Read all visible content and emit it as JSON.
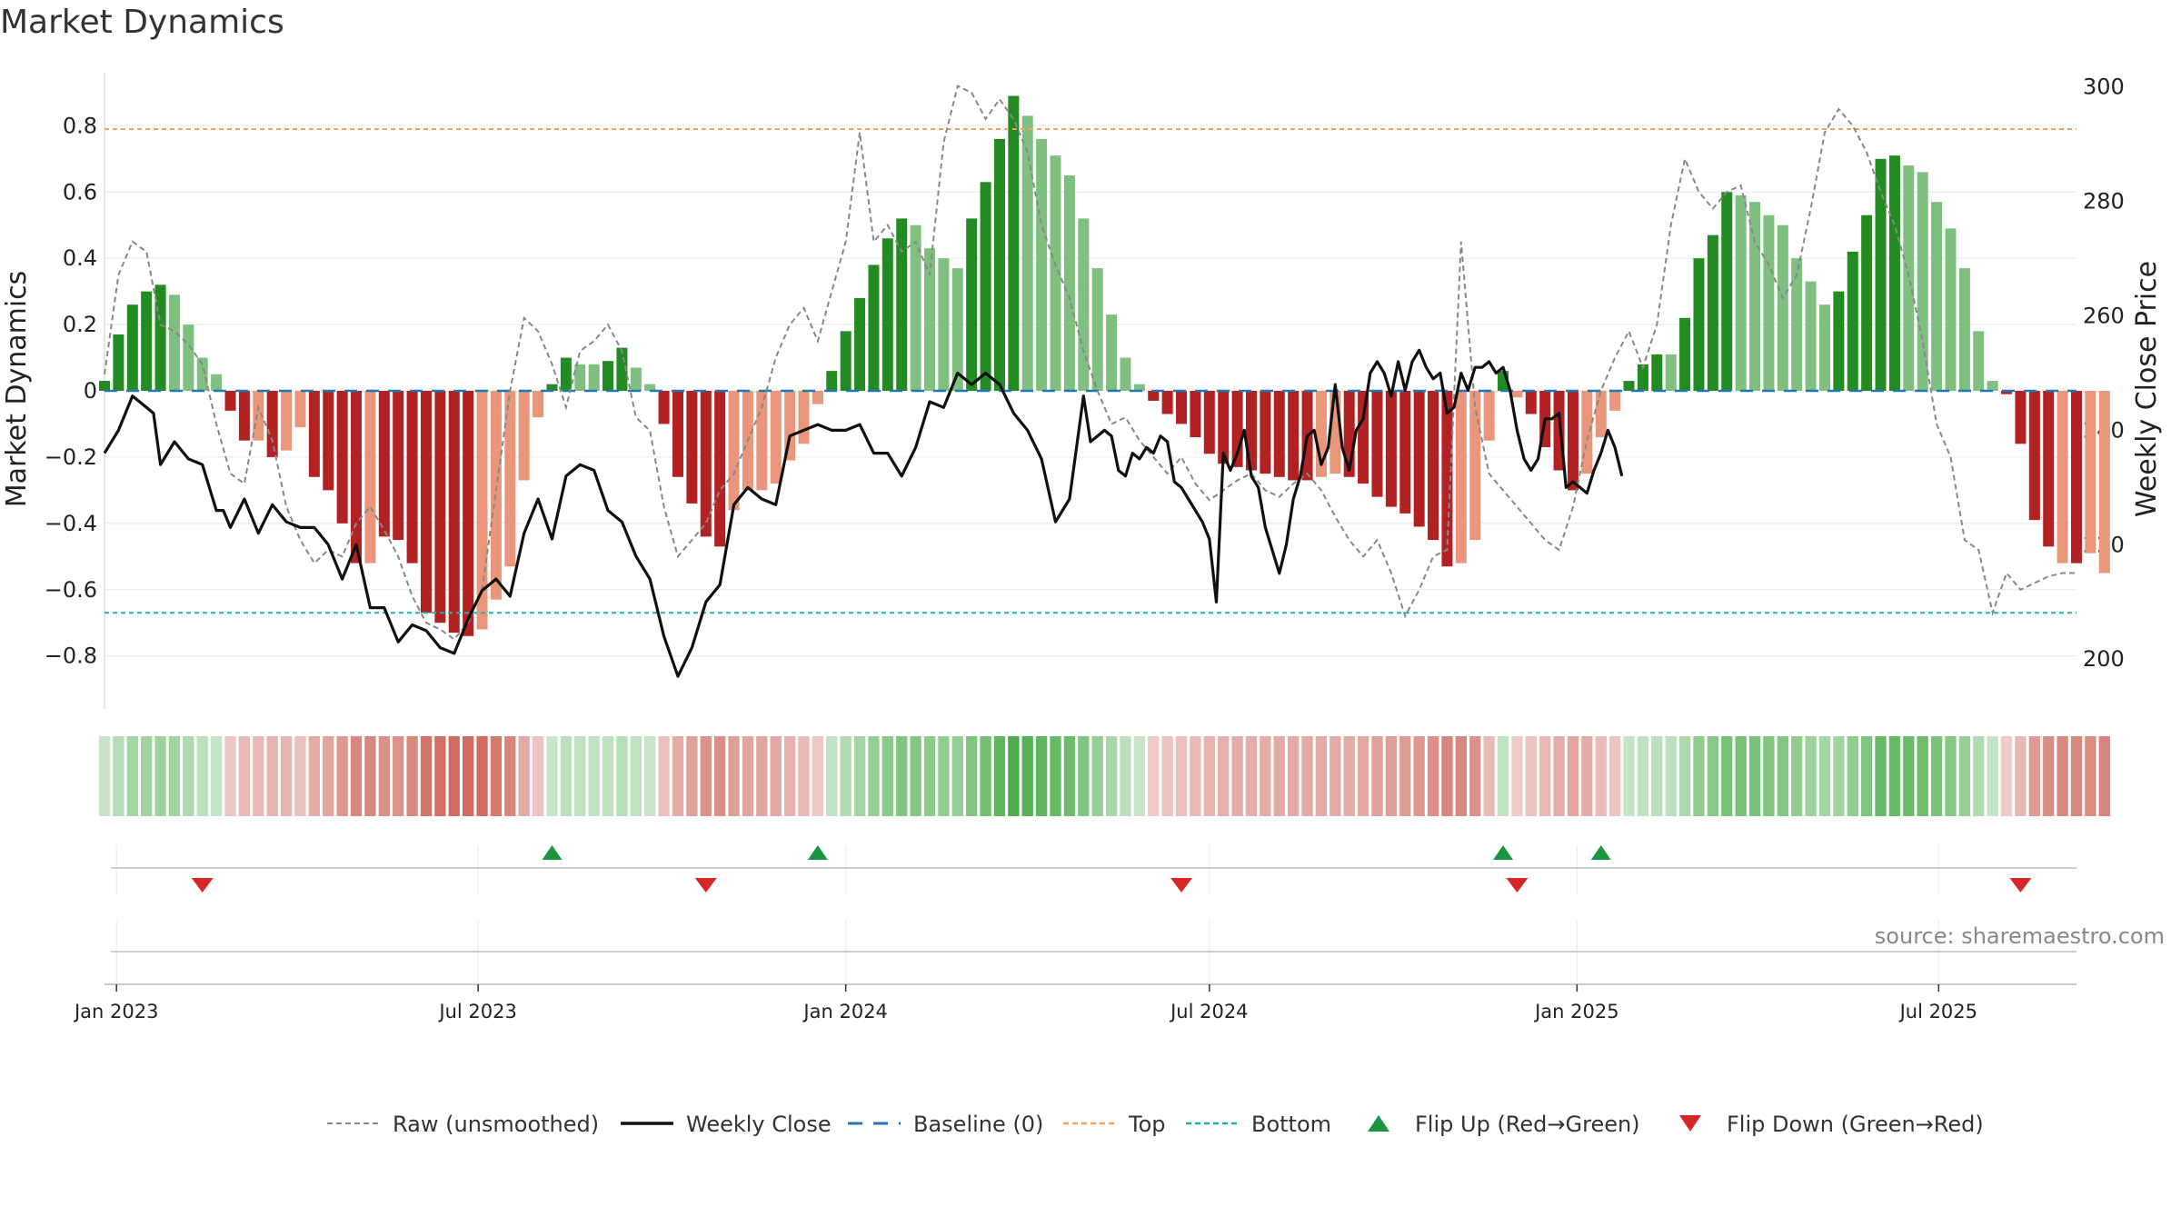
{
  "title": "Market Dynamics",
  "source": "source: sharemaestro.com",
  "colors": {
    "green_strong": "#228B22",
    "green_light": "#7FBF7F",
    "red_strong": "#B22222",
    "red_light": "#E9967A",
    "raw": "#888888",
    "close": "#111111",
    "baseline": "#1f77b4",
    "top": "#F4A460",
    "bottom": "#20B2AA",
    "flip_up": "#1a9641",
    "flip_down": "#d62728"
  },
  "chart_data": {
    "type": "bar",
    "title": "Market Dynamics",
    "ylabel": "Market Dynamics",
    "y2label": "Weekly Close Price",
    "ylim": [
      -0.96,
      0.96
    ],
    "y2lim": [
      191.3,
      302.5
    ],
    "yticks": [
      -0.8,
      -0.6,
      -0.4,
      -0.2,
      0,
      0.2,
      0.4,
      0.6,
      0.8
    ],
    "ytick_labels": [
      "−0.8",
      "−0.6",
      "−0.4",
      "−0.2",
      "0",
      "0.2",
      "0.4",
      "0.6",
      "0.8"
    ],
    "y2ticks": [
      200,
      220,
      240,
      260,
      280,
      300
    ],
    "y2tick_labels": [
      "200",
      "220",
      "240",
      "260",
      "280",
      "300"
    ],
    "x_start": "2022-12-26",
    "x_end": "2025-09-08",
    "xticks": [
      "2023-01-01",
      "2023-07-01",
      "2024-01-01",
      "2024-07-01",
      "2025-01-01",
      "2025-07-01"
    ],
    "xtick_labels": [
      "Jan 2023",
      "Jul 2023",
      "Jan 2024",
      "Jul 2024",
      "Jan 2025",
      "Jul 2025"
    ],
    "top_level": 0.79,
    "bottom_level": -0.67,
    "baseline": 0,
    "grid": true,
    "legend_position": "bottom-center",
    "legend": [
      "Raw (unsmoothed)",
      "Weekly Close",
      "Baseline (0)",
      "Top",
      "Bottom",
      "Flip Up (Red→Green)",
      "Flip Down (Green→Red)"
    ],
    "start_date": "2022-12-26",
    "week_values": [
      0.03,
      0.17,
      0.26,
      0.3,
      0.32,
      0.29,
      0.2,
      0.1,
      0.05,
      -0.06,
      -0.15,
      -0.15,
      -0.2,
      -0.18,
      -0.11,
      -0.26,
      -0.3,
      -0.4,
      -0.52,
      -0.52,
      -0.44,
      -0.45,
      -0.52,
      -0.67,
      -0.7,
      -0.73,
      -0.74,
      -0.72,
      -0.63,
      -0.53,
      -0.27,
      -0.08,
      0.02,
      0.1,
      0.08,
      0.08,
      0.09,
      0.13,
      0.07,
      0.02,
      -0.1,
      -0.26,
      -0.34,
      -0.44,
      -0.47,
      -0.36,
      -0.3,
      -0.3,
      -0.28,
      -0.21,
      -0.16,
      -0.04,
      0.06,
      0.18,
      0.28,
      0.38,
      0.46,
      0.52,
      0.5,
      0.43,
      0.4,
      0.37,
      0.52,
      0.63,
      0.76,
      0.89,
      0.83,
      0.76,
      0.71,
      0.65,
      0.52,
      0.37,
      0.23,
      0.1,
      0.02,
      -0.03,
      -0.07,
      -0.1,
      -0.14,
      -0.19,
      -0.22,
      -0.23,
      -0.24,
      -0.25,
      -0.26,
      -0.27,
      -0.27,
      -0.26,
      -0.25,
      -0.26,
      -0.28,
      -0.32,
      -0.35,
      -0.37,
      -0.41,
      -0.45,
      -0.53,
      -0.52,
      -0.45,
      -0.15,
      0.06,
      -0.02,
      -0.07,
      -0.17,
      -0.24,
      -0.3,
      -0.25,
      -0.14,
      -0.06,
      0.03,
      0.08,
      0.11,
      0.11,
      0.22,
      0.4,
      0.47,
      0.6,
      0.59,
      0.57,
      0.53,
      0.5,
      0.4,
      0.33,
      0.26,
      0.3,
      0.42,
      0.53,
      0.7,
      0.71,
      0.68,
      0.66,
      0.57,
      0.49,
      0.37,
      0.18,
      0.03,
      -0.01,
      -0.16,
      -0.39,
      -0.47,
      -0.52,
      -0.52,
      -0.49,
      -0.55
    ],
    "week_strong": [
      1,
      1,
      1,
      1,
      1,
      0,
      0,
      0,
      0,
      1,
      1,
      0,
      1,
      0,
      0,
      1,
      1,
      1,
      1,
      0,
      1,
      1,
      1,
      1,
      1,
      1,
      1,
      0,
      0,
      0,
      0,
      0,
      1,
      1,
      0,
      0,
      1,
      1,
      0,
      0,
      1,
      1,
      1,
      1,
      1,
      0,
      0,
      0,
      0,
      0,
      0,
      0,
      1,
      1,
      1,
      1,
      1,
      1,
      0,
      0,
      0,
      0,
      1,
      1,
      1,
      1,
      0,
      0,
      0,
      0,
      0,
      0,
      0,
      0,
      0,
      1,
      1,
      1,
      1,
      1,
      1,
      1,
      1,
      1,
      1,
      1,
      1,
      0,
      0,
      1,
      1,
      1,
      1,
      1,
      1,
      1,
      1,
      0,
      0,
      0,
      1,
      0,
      1,
      1,
      1,
      1,
      0,
      0,
      0,
      1,
      1,
      1,
      0,
      1,
      1,
      1,
      1,
      0,
      0,
      0,
      0,
      0,
      0,
      0,
      1,
      1,
      1,
      1,
      1,
      0,
      0,
      0,
      0,
      0,
      0,
      0,
      1,
      1,
      1,
      1,
      0,
      1
    ],
    "raw": [
      0.05,
      0.35,
      0.45,
      0.42,
      0.2,
      0.18,
      0.14,
      0.08,
      -0.1,
      -0.25,
      -0.28,
      -0.05,
      -0.15,
      -0.35,
      -0.45,
      -0.52,
      -0.48,
      -0.5,
      -0.4,
      -0.35,
      -0.42,
      -0.5,
      -0.62,
      -0.7,
      -0.72,
      -0.75,
      -0.7,
      -0.6,
      -0.3,
      0.0,
      0.22,
      0.18,
      0.08,
      -0.05,
      0.12,
      0.15,
      0.2,
      0.12,
      -0.08,
      -0.12,
      -0.35,
      -0.5,
      -0.45,
      -0.4,
      -0.3,
      -0.25,
      -0.15,
      -0.05,
      0.1,
      0.2,
      0.25,
      0.15,
      0.3,
      0.45,
      0.78,
      0.45,
      0.5,
      0.42,
      0.45,
      0.35,
      0.75,
      0.92,
      0.9,
      0.82,
      0.88,
      0.82,
      0.72,
      0.5,
      0.38,
      0.28,
      0.12,
      0.0,
      -0.1,
      -0.08,
      -0.15,
      -0.2,
      -0.25,
      -0.2,
      -0.28,
      -0.33,
      -0.3,
      -0.27,
      -0.25,
      -0.3,
      -0.32,
      -0.28,
      -0.25,
      -0.3,
      -0.38,
      -0.45,
      -0.5,
      -0.45,
      -0.55,
      -0.68,
      -0.6,
      -0.5,
      -0.48,
      0.45,
      -0.05,
      -0.25,
      -0.3,
      -0.35,
      -0.4,
      -0.45,
      -0.48,
      -0.35,
      -0.15,
      0.0,
      0.1,
      0.18,
      0.07,
      0.2,
      0.5,
      0.7,
      0.6,
      0.55,
      0.6,
      0.62,
      0.45,
      0.38,
      0.28,
      0.35,
      0.55,
      0.78,
      0.85,
      0.8,
      0.72,
      0.6,
      0.5,
      0.35,
      0.15,
      -0.1,
      -0.2,
      -0.45,
      -0.48,
      -0.67,
      -0.55,
      -0.6,
      -0.58,
      -0.56,
      -0.55,
      -0.55
    ],
    "close_weeks": [
      0,
      2,
      4,
      6,
      7,
      8,
      10,
      12,
      14,
      16,
      17,
      18,
      20,
      22,
      24,
      26,
      28,
      30,
      32,
      34,
      36,
      38,
      40,
      42,
      44,
      46,
      48,
      50,
      52,
      54,
      56,
      58,
      60,
      62,
      64,
      66,
      68,
      70,
      72,
      74,
      76,
      78,
      80,
      82,
      84,
      86,
      88,
      90,
      92,
      94,
      96,
      98,
      100,
      102,
      104,
      106,
      108,
      110,
      112,
      114,
      116,
      118,
      120,
      122,
      124,
      126,
      128,
      130,
      132,
      134,
      136,
      138,
      140,
      141,
      142,
      143,
      144,
      145,
      146,
      147,
      148,
      149,
      150,
      151,
      152,
      153,
      154,
      155,
      156,
      157,
      158,
      159,
      160,
      161,
      162,
      163,
      164,
      165,
      166,
      167,
      168,
      169,
      170,
      171,
      172,
      173,
      174,
      175,
      176,
      177,
      178,
      179,
      180,
      181,
      182,
      183,
      184,
      185,
      186,
      187,
      188,
      189,
      190,
      191,
      192,
      193,
      194,
      195,
      196,
      197,
      198,
      199,
      200,
      201,
      202,
      203,
      204,
      205,
      206,
      207,
      208,
      209,
      210,
      211,
      212,
      213,
      214,
      215,
      216,
      217
    ],
    "close_prices": [
      236,
      240,
      246,
      244,
      243,
      234,
      238,
      235,
      234,
      226,
      226,
      223,
      228,
      222,
      227,
      224,
      223,
      223,
      220,
      214,
      220,
      209,
      209,
      203,
      206,
      205,
      202,
      201,
      207,
      212,
      214,
      211,
      222,
      228,
      221,
      232,
      234,
      233,
      226,
      224,
      218,
      214,
      204,
      197,
      202,
      210,
      213,
      227,
      230,
      228,
      227,
      239,
      240,
      241,
      240,
      240,
      241,
      236,
      236,
      232,
      237,
      245,
      244,
      250,
      248,
      250,
      248,
      243,
      240,
      235,
      224,
      228,
      246,
      238,
      239,
      240,
      239,
      233,
      232,
      236,
      235,
      237,
      236,
      239,
      238,
      231,
      230,
      228,
      226,
      224,
      221,
      210,
      236,
      233,
      236,
      240,
      232,
      230,
      223,
      219,
      215,
      220,
      228,
      232,
      239,
      240,
      234,
      237,
      248,
      237,
      233,
      240,
      242,
      250,
      252,
      250,
      246,
      252,
      247,
      252,
      254,
      251,
      249,
      250,
      243,
      244,
      250,
      247,
      251,
      251,
      252,
      250,
      251,
      247,
      240,
      235,
      233,
      235,
      242,
      242,
      243,
      230,
      231,
      230,
      229,
      233,
      236,
      240,
      237,
      232,
      229,
      228,
      228,
      234,
      236,
      231,
      234,
      242,
      246,
      254,
      250,
      244,
      250,
      253,
      250,
      246,
      248,
      253,
      256,
      260,
      264,
      264,
      268,
      271,
      275,
      281,
      288,
      285,
      283,
      286,
      292,
      295,
      299,
      296,
      290,
      292,
      285,
      289,
      297,
      293,
      284,
      285,
      266,
      264,
      251,
      248,
      247,
      240,
      233,
      230,
      229,
      228,
      231,
      235,
      237,
      236,
      233,
      232
    ],
    "flips_up": [
      "2023-08-07",
      "2023-12-18",
      "2024-11-25",
      "2025-01-13"
    ],
    "flips_down": [
      "2023-02-13",
      "2023-10-23",
      "2024-06-17",
      "2024-12-02",
      "2025-08-11"
    ],
    "y_axis_note": "close series mapped on secondary axis"
  }
}
